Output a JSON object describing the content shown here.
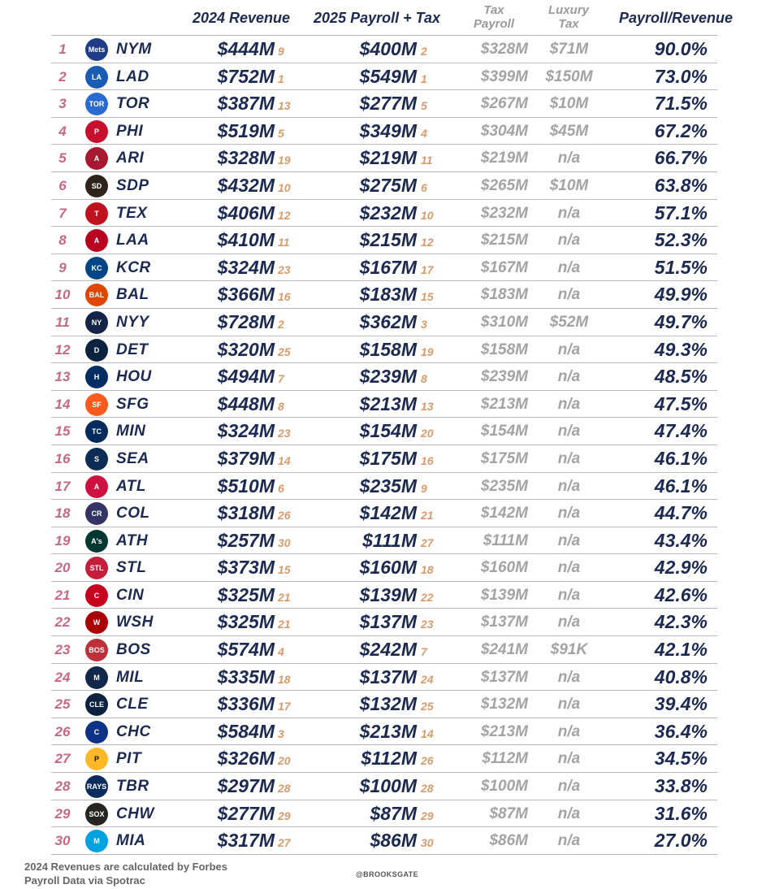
{
  "headers": {
    "revenue": "2024 Revenue",
    "payroll": "2025 Payroll + Tax",
    "tax_payroll_1": "Tax",
    "tax_payroll_2": "Payroll",
    "luxury_1": "Luxury",
    "luxury_2": "Tax",
    "ratio": "Payroll/Revenue"
  },
  "rows": [
    {
      "rank": "1",
      "team": "NYM",
      "revenue": "$444M",
      "revenue_rank": "9",
      "payroll": "$400M",
      "payroll_rank": "2",
      "tax_payroll": "$328M",
      "luxury_tax": "$71M",
      "ratio": "90.0%",
      "logo_color": "#1f3c88",
      "logo_text": "Mets"
    },
    {
      "rank": "2",
      "team": "LAD",
      "revenue": "$752M",
      "revenue_rank": "1",
      "payroll": "$549M",
      "payroll_rank": "1",
      "tax_payroll": "$399M",
      "luxury_tax": "$150M",
      "ratio": "73.0%",
      "logo_color": "#1a5bb4",
      "logo_text": "LA"
    },
    {
      "rank": "3",
      "team": "TOR",
      "revenue": "$387M",
      "revenue_rank": "13",
      "payroll": "$277M",
      "payroll_rank": "5",
      "tax_payroll": "$267M",
      "luxury_tax": "$10M",
      "ratio": "71.5%",
      "logo_color": "#2a6bd1",
      "logo_text": "TOR"
    },
    {
      "rank": "4",
      "team": "PHI",
      "revenue": "$519M",
      "revenue_rank": "5",
      "payroll": "$349M",
      "payroll_rank": "4",
      "tax_payroll": "$304M",
      "luxury_tax": "$45M",
      "ratio": "67.2%",
      "logo_color": "#c8102e",
      "logo_text": "P"
    },
    {
      "rank": "5",
      "team": "ARI",
      "revenue": "$328M",
      "revenue_rank": "19",
      "payroll": "$219M",
      "payroll_rank": "11",
      "tax_payroll": "$219M",
      "luxury_tax": "n/a",
      "ratio": "66.7%",
      "logo_color": "#a71930",
      "logo_text": "A"
    },
    {
      "rank": "6",
      "team": "SDP",
      "revenue": "$432M",
      "revenue_rank": "10",
      "payroll": "$275M",
      "payroll_rank": "6",
      "tax_payroll": "$265M",
      "luxury_tax": "$10M",
      "ratio": "63.8%",
      "logo_color": "#2f241d",
      "logo_text": "SD"
    },
    {
      "rank": "7",
      "team": "TEX",
      "revenue": "$406M",
      "revenue_rank": "12",
      "payroll": "$232M",
      "payroll_rank": "10",
      "tax_payroll": "$232M",
      "luxury_tax": "n/a",
      "ratio": "57.1%",
      "logo_color": "#c0111f",
      "logo_text": "T"
    },
    {
      "rank": "8",
      "team": "LAA",
      "revenue": "$410M",
      "revenue_rank": "11",
      "payroll": "$215M",
      "payroll_rank": "12",
      "tax_payroll": "$215M",
      "luxury_tax": "n/a",
      "ratio": "52.3%",
      "logo_color": "#ba0021",
      "logo_text": "A"
    },
    {
      "rank": "9",
      "team": "KCR",
      "revenue": "$324M",
      "revenue_rank": "23",
      "payroll": "$167M",
      "payroll_rank": "17",
      "tax_payroll": "$167M",
      "luxury_tax": "n/a",
      "ratio": "51.5%",
      "logo_color": "#004687",
      "logo_text": "KC"
    },
    {
      "rank": "10",
      "team": "BAL",
      "revenue": "$366M",
      "revenue_rank": "16",
      "payroll": "$183M",
      "payroll_rank": "15",
      "tax_payroll": "$183M",
      "luxury_tax": "n/a",
      "ratio": "49.9%",
      "logo_color": "#df4601",
      "logo_text": "BAL"
    },
    {
      "rank": "11",
      "team": "NYY",
      "revenue": "$728M",
      "revenue_rank": "2",
      "payroll": "$362M",
      "payroll_rank": "3",
      "tax_payroll": "$310M",
      "luxury_tax": "$52M",
      "ratio": "49.7%",
      "logo_color": "#132448",
      "logo_text": "NY"
    },
    {
      "rank": "12",
      "team": "DET",
      "revenue": "$320M",
      "revenue_rank": "25",
      "payroll": "$158M",
      "payroll_rank": "19",
      "tax_payroll": "$158M",
      "luxury_tax": "n/a",
      "ratio": "49.3%",
      "logo_color": "#0c2340",
      "logo_text": "D"
    },
    {
      "rank": "13",
      "team": "HOU",
      "revenue": "$494M",
      "revenue_rank": "7",
      "payroll": "$239M",
      "payroll_rank": "8",
      "tax_payroll": "$239M",
      "luxury_tax": "n/a",
      "ratio": "48.5%",
      "logo_color": "#002d62",
      "logo_text": "H"
    },
    {
      "rank": "14",
      "team": "SFG",
      "revenue": "$448M",
      "revenue_rank": "8",
      "payroll": "$213M",
      "payroll_rank": "13",
      "tax_payroll": "$213M",
      "luxury_tax": "n/a",
      "ratio": "47.5%",
      "logo_color": "#fd5a1e",
      "logo_text": "SF"
    },
    {
      "rank": "15",
      "team": "MIN",
      "revenue": "$324M",
      "revenue_rank": "23",
      "payroll": "$154M",
      "payroll_rank": "20",
      "tax_payroll": "$154M",
      "luxury_tax": "n/a",
      "ratio": "47.4%",
      "logo_color": "#002b5c",
      "logo_text": "TC"
    },
    {
      "rank": "16",
      "team": "SEA",
      "revenue": "$379M",
      "revenue_rank": "14",
      "payroll": "$175M",
      "payroll_rank": "16",
      "tax_payroll": "$175M",
      "luxury_tax": "n/a",
      "ratio": "46.1%",
      "logo_color": "#0c2c56",
      "logo_text": "S"
    },
    {
      "rank": "17",
      "team": "ATL",
      "revenue": "$510M",
      "revenue_rank": "6",
      "payroll": "$235M",
      "payroll_rank": "9",
      "tax_payroll": "$235M",
      "luxury_tax": "n/a",
      "ratio": "46.1%",
      "logo_color": "#ce1141",
      "logo_text": "A"
    },
    {
      "rank": "18",
      "team": "COL",
      "revenue": "$318M",
      "revenue_rank": "26",
      "payroll": "$142M",
      "payroll_rank": "21",
      "tax_payroll": "$142M",
      "luxury_tax": "n/a",
      "ratio": "44.7%",
      "logo_color": "#333366",
      "logo_text": "CR"
    },
    {
      "rank": "19",
      "team": "ATH",
      "revenue": "$257M",
      "revenue_rank": "30",
      "payroll": "$111M",
      "payroll_rank": "27",
      "tax_payroll": "$111M",
      "luxury_tax": "n/a",
      "ratio": "43.4%",
      "logo_color": "#003831",
      "logo_text": "A's"
    },
    {
      "rank": "20",
      "team": "STL",
      "revenue": "$373M",
      "revenue_rank": "15",
      "payroll": "$160M",
      "payroll_rank": "18",
      "tax_payroll": "$160M",
      "luxury_tax": "n/a",
      "ratio": "42.9%",
      "logo_color": "#c41e3a",
      "logo_text": "STL"
    },
    {
      "rank": "21",
      "team": "CIN",
      "revenue": "$325M",
      "revenue_rank": "21",
      "payroll": "$139M",
      "payroll_rank": "22",
      "tax_payroll": "$139M",
      "luxury_tax": "n/a",
      "ratio": "42.6%",
      "logo_color": "#c6011f",
      "logo_text": "C"
    },
    {
      "rank": "22",
      "team": "WSH",
      "revenue": "$325M",
      "revenue_rank": "21",
      "payroll": "$137M",
      "payroll_rank": "23",
      "tax_payroll": "$137M",
      "luxury_tax": "n/a",
      "ratio": "42.3%",
      "logo_color": "#ab0003",
      "logo_text": "W"
    },
    {
      "rank": "23",
      "team": "BOS",
      "revenue": "$574M",
      "revenue_rank": "4",
      "payroll": "$242M",
      "payroll_rank": "7",
      "tax_payroll": "$241M",
      "luxury_tax": "$91K",
      "ratio": "42.1%",
      "logo_color": "#bd3039",
      "logo_text": "BOS"
    },
    {
      "rank": "24",
      "team": "MIL",
      "revenue": "$335M",
      "revenue_rank": "18",
      "payroll": "$137M",
      "payroll_rank": "24",
      "tax_payroll": "$137M",
      "luxury_tax": "n/a",
      "ratio": "40.8%",
      "logo_color": "#12284b",
      "logo_text": "M"
    },
    {
      "rank": "25",
      "team": "CLE",
      "revenue": "$336M",
      "revenue_rank": "17",
      "payroll": "$132M",
      "payroll_rank": "25",
      "tax_payroll": "$132M",
      "luxury_tax": "n/a",
      "ratio": "39.4%",
      "logo_color": "#0c2340",
      "logo_text": "CLE"
    },
    {
      "rank": "26",
      "team": "CHC",
      "revenue": "$584M",
      "revenue_rank": "3",
      "payroll": "$213M",
      "payroll_rank": "14",
      "tax_payroll": "$213M",
      "luxury_tax": "n/a",
      "ratio": "36.4%",
      "logo_color": "#0e3386",
      "logo_text": "C"
    },
    {
      "rank": "27",
      "team": "PIT",
      "revenue": "$326M",
      "revenue_rank": "20",
      "payroll": "$112M",
      "payroll_rank": "26",
      "tax_payroll": "$112M",
      "luxury_tax": "n/a",
      "ratio": "34.5%",
      "logo_color": "#fdb827",
      "logo_text": "P"
    },
    {
      "rank": "28",
      "team": "TBR",
      "revenue": "$297M",
      "revenue_rank": "28",
      "payroll": "$100M",
      "payroll_rank": "28",
      "tax_payroll": "$100M",
      "luxury_tax": "n/a",
      "ratio": "33.8%",
      "logo_color": "#092c5c",
      "logo_text": "RAYS"
    },
    {
      "rank": "29",
      "team": "CHW",
      "revenue": "$277M",
      "revenue_rank": "29",
      "payroll": "$87M",
      "payroll_rank": "29",
      "tax_payroll": "$87M",
      "luxury_tax": "n/a",
      "ratio": "31.6%",
      "logo_color": "#27251f",
      "logo_text": "SOX"
    },
    {
      "rank": "30",
      "team": "MIA",
      "revenue": "$317M",
      "revenue_rank": "27",
      "payroll": "$86M",
      "payroll_rank": "30",
      "tax_payroll": "$86M",
      "luxury_tax": "n/a",
      "ratio": "27.0%",
      "logo_color": "#00a3e0",
      "logo_text": "M"
    }
  ],
  "footer": {
    "line1": "2024 Revenues are calculated by Forbes",
    "line2": "Payroll Data via Spotrac",
    "credit": "@BROOKSGATE"
  }
}
